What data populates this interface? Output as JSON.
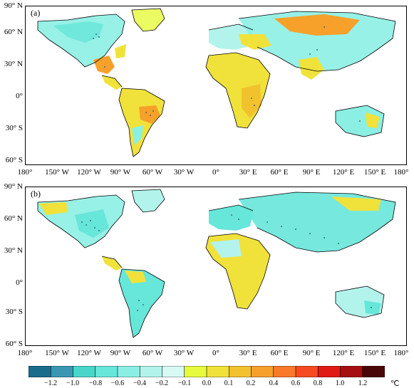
{
  "panels": [
    {
      "label": "(a)"
    },
    {
      "label": "(b)"
    }
  ],
  "axes": {
    "lat_labels": [
      "90° N",
      "60° N",
      "30° N",
      "0°",
      "30° S",
      "60° S"
    ],
    "lon_labels": [
      "180°",
      "150° W",
      "120° W",
      "90° W",
      "60° W",
      "30° W",
      "0°",
      "30° E",
      "60° E",
      "90° E",
      "120° E",
      "150° E",
      "180°"
    ],
    "lat_range": [
      -60,
      90
    ],
    "lon_range": [
      -180,
      180
    ]
  },
  "colorbar": {
    "levels": [
      "−1.2",
      "−1.0",
      "−0.8",
      "−0.6",
      "−0.4",
      "−0.2",
      "−0.1",
      "0.0",
      "0.1",
      "0.2",
      "0.4",
      "0.6",
      "0.8",
      "1.0",
      "1.2"
    ],
    "unit": "℃",
    "colors": [
      "#1b6d8c",
      "#3a97b3",
      "#49d6c9",
      "#67e6da",
      "#8cefe4",
      "#b2f4ec",
      "#d8faf5",
      "#e6fb3c",
      "#f0e23a",
      "#f2c22e",
      "#f7a02a",
      "#f87a2a",
      "#f64a22",
      "#e01a14",
      "#a50f0f",
      "#4a0707"
    ]
  },
  "colors": {
    "ocean": "#ffffff",
    "coast": "#000000",
    "stipple": "#3c6e80"
  }
}
